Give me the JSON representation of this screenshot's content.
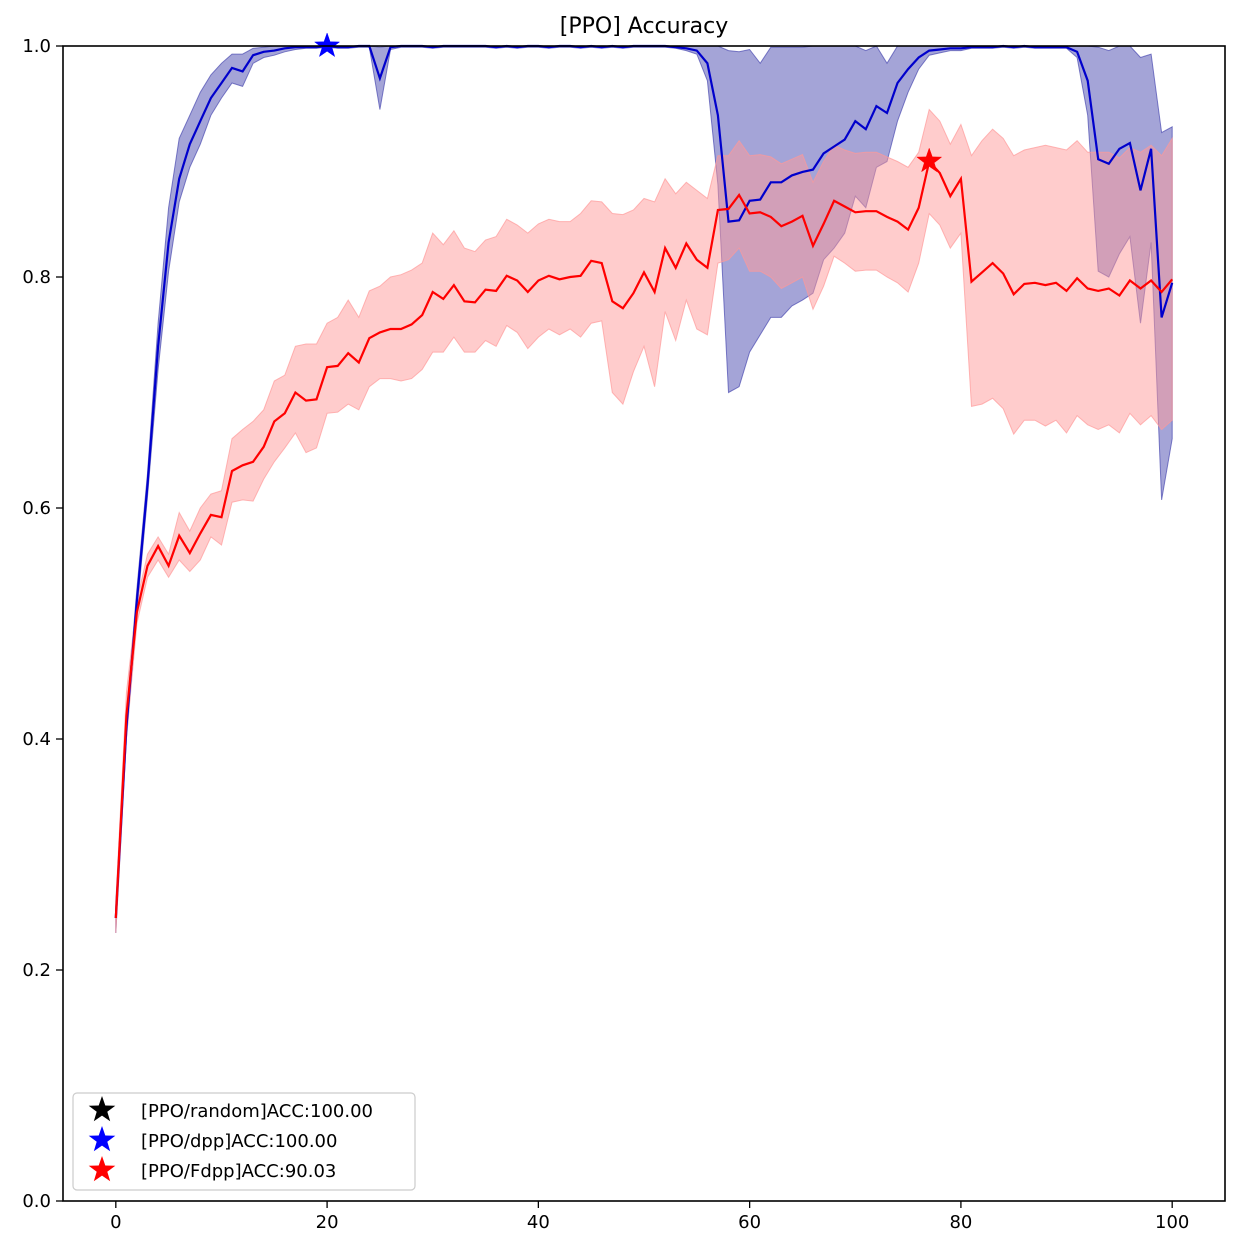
{
  "chart_data": {
    "type": "line",
    "title": "[PPO] Accuracy",
    "xlabel": "",
    "ylabel": "",
    "xlim": [
      -5,
      105
    ],
    "ylim": [
      0.0,
      1.0
    ],
    "x_ticks": [
      0,
      20,
      40,
      60,
      80,
      100
    ],
    "x_tick_labels": [
      "0",
      "20",
      "40",
      "60",
      "80",
      "100"
    ],
    "y_ticks": [
      0.0,
      0.2,
      0.4,
      0.6,
      0.8,
      1.0
    ],
    "y_tick_labels": [
      "0.0",
      "0.2",
      "0.4",
      "0.6",
      "0.8",
      "1.0"
    ],
    "grid": false,
    "legend_position": "lower-left",
    "legend": [
      {
        "label": "[PPO/random]ACC:100.00",
        "color": "#000000",
        "marker": "star"
      },
      {
        "label": "[PPO/dpp]ACC:100.00",
        "color": "#0000ff",
        "marker": "star"
      },
      {
        "label": "[PPO/Fdpp]ACC:90.03",
        "color": "#ff0000",
        "marker": "star"
      }
    ],
    "series": [
      {
        "color": "#0000cc",
        "band_color": "#4a4ab0",
        "x": [
          0,
          1,
          2,
          3,
          4,
          5,
          6,
          7,
          8,
          9,
          10,
          11,
          12,
          13,
          14,
          15,
          16,
          17,
          18,
          19,
          20,
          21,
          22,
          23,
          24,
          25,
          26,
          27,
          28,
          29,
          30,
          31,
          32,
          33,
          34,
          35,
          36,
          37,
          38,
          39,
          40,
          41,
          42,
          43,
          44,
          45,
          46,
          47,
          48,
          49,
          50,
          51,
          52,
          53,
          54,
          55,
          56,
          57,
          58,
          59,
          60,
          61,
          62,
          63,
          64,
          65,
          66,
          67,
          68,
          69,
          70,
          71,
          72,
          73,
          74,
          75,
          76,
          77,
          78,
          79,
          80,
          81,
          82,
          83,
          84,
          85,
          86,
          87,
          88,
          89,
          90,
          91,
          92,
          93,
          94,
          95,
          96,
          97,
          98,
          99,
          100
        ],
        "values": [
          0.245,
          0.41,
          0.52,
          0.62,
          0.74,
          0.83,
          0.885,
          0.915,
          0.935,
          0.955,
          0.968,
          0.981,
          0.978,
          0.992,
          0.995,
          0.996,
          0.998,
          0.999,
          0.999,
          0.999,
          1.0,
          0.999,
          0.999,
          1.0,
          1.0,
          0.972,
          0.999,
          1.0,
          1.0,
          1.0,
          0.999,
          1.0,
          1.0,
          1.0,
          1.0,
          1.0,
          0.999,
          1.0,
          0.999,
          1.0,
          1.0,
          0.999,
          1.0,
          1.0,
          0.999,
          1.0,
          0.999,
          1.0,
          0.999,
          1.0,
          1.0,
          1.0,
          1.0,
          0.999,
          0.998,
          0.996,
          0.985,
          0.94,
          0.848,
          0.849,
          0.866,
          0.867,
          0.882,
          0.882,
          0.888,
          0.891,
          0.893,
          0.907,
          0.913,
          0.919,
          0.935,
          0.928,
          0.948,
          0.942,
          0.968,
          0.98,
          0.99,
          0.996,
          0.997,
          0.998,
          0.998,
          0.999,
          0.999,
          0.999,
          1.0,
          0.999,
          1.0,
          0.999,
          0.999,
          0.999,
          0.999,
          0.995,
          0.97,
          0.902,
          0.898,
          0.911,
          0.916,
          0.875,
          0.911,
          0.765,
          0.795
        ],
        "lower": [
          0.232,
          0.4,
          0.51,
          0.61,
          0.72,
          0.805,
          0.865,
          0.895,
          0.915,
          0.94,
          0.955,
          0.968,
          0.965,
          0.985,
          0.99,
          0.992,
          0.995,
          0.997,
          0.998,
          0.998,
          0.999,
          0.998,
          0.998,
          0.999,
          0.999,
          0.945,
          0.997,
          0.999,
          0.999,
          0.999,
          0.998,
          0.999,
          0.999,
          0.999,
          0.999,
          0.999,
          0.998,
          0.999,
          0.998,
          0.999,
          0.999,
          0.998,
          0.999,
          0.999,
          0.998,
          0.999,
          0.998,
          0.999,
          0.998,
          0.999,
          0.999,
          0.999,
          0.999,
          0.998,
          0.996,
          0.993,
          0.97,
          0.88,
          0.7,
          0.705,
          0.735,
          0.75,
          0.765,
          0.765,
          0.775,
          0.78,
          0.786,
          0.815,
          0.825,
          0.838,
          0.87,
          0.86,
          0.895,
          0.9,
          0.935,
          0.96,
          0.98,
          0.992,
          0.994,
          0.996,
          0.996,
          0.998,
          0.998,
          0.998,
          0.999,
          0.998,
          0.999,
          0.998,
          0.998,
          0.998,
          0.998,
          0.99,
          0.94,
          0.805,
          0.8,
          0.82,
          0.835,
          0.76,
          0.83,
          0.607,
          0.66
        ],
        "upper": [
          0.258,
          0.42,
          0.53,
          0.63,
          0.76,
          0.86,
          0.92,
          0.94,
          0.96,
          0.975,
          0.985,
          0.993,
          0.993,
          0.998,
          0.999,
          1.0,
          1.0,
          1.0,
          1.0,
          1.0,
          1.0,
          1.0,
          1.0,
          1.0,
          1.0,
          0.999,
          1.0,
          1.0,
          1.0,
          1.0,
          1.0,
          1.0,
          1.0,
          1.0,
          1.0,
          1.0,
          1.0,
          1.0,
          1.0,
          1.0,
          1.0,
          1.0,
          1.0,
          1.0,
          1.0,
          1.0,
          1.0,
          1.0,
          1.0,
          1.0,
          1.0,
          1.0,
          1.0,
          1.0,
          1.0,
          1.0,
          1.0,
          1.0,
          0.996,
          0.995,
          0.997,
          0.985,
          0.999,
          0.999,
          0.999,
          0.999,
          1.0,
          1.0,
          1.0,
          1.0,
          1.0,
          0.996,
          1.0,
          0.985,
          1.0,
          1.0,
          1.0,
          1.0,
          1.0,
          1.0,
          1.0,
          1.0,
          1.0,
          1.0,
          1.0,
          1.0,
          1.0,
          1.0,
          1.0,
          1.0,
          1.0,
          1.0,
          1.0,
          0.999,
          0.996,
          1.0,
          1.0,
          0.99,
          0.993,
          0.925,
          0.93
        ]
      },
      {
        "color": "#ff0000",
        "band_color": "#ff9999",
        "x": [
          0,
          1,
          2,
          3,
          4,
          5,
          6,
          7,
          8,
          9,
          10,
          11,
          12,
          13,
          14,
          15,
          16,
          17,
          18,
          19,
          20,
          21,
          22,
          23,
          24,
          25,
          26,
          27,
          28,
          29,
          30,
          31,
          32,
          33,
          34,
          35,
          36,
          37,
          38,
          39,
          40,
          41,
          42,
          43,
          44,
          45,
          46,
          47,
          48,
          49,
          50,
          51,
          52,
          53,
          54,
          55,
          56,
          57,
          58,
          59,
          60,
          61,
          62,
          63,
          64,
          65,
          66,
          67,
          68,
          69,
          70,
          71,
          72,
          73,
          74,
          75,
          76,
          77,
          78,
          79,
          80,
          81,
          82,
          83,
          84,
          85,
          86,
          87,
          88,
          89,
          90,
          91,
          92,
          93,
          94,
          95,
          96,
          97,
          98,
          99,
          100
        ],
        "values": [
          0.245,
          0.42,
          0.51,
          0.55,
          0.567,
          0.55,
          0.576,
          0.561,
          0.578,
          0.594,
          0.592,
          0.632,
          0.637,
          0.64,
          0.653,
          0.675,
          0.682,
          0.7,
          0.693,
          0.694,
          0.722,
          0.723,
          0.734,
          0.726,
          0.747,
          0.752,
          0.755,
          0.755,
          0.759,
          0.767,
          0.787,
          0.781,
          0.793,
          0.779,
          0.778,
          0.789,
          0.788,
          0.801,
          0.797,
          0.787,
          0.797,
          0.801,
          0.798,
          0.8,
          0.801,
          0.814,
          0.812,
          0.779,
          0.773,
          0.786,
          0.804,
          0.787,
          0.825,
          0.808,
          0.829,
          0.815,
          0.808,
          0.858,
          0.859,
          0.871,
          0.855,
          0.856,
          0.852,
          0.844,
          0.848,
          0.853,
          0.827,
          0.846,
          0.866,
          0.861,
          0.856,
          0.857,
          0.857,
          0.852,
          0.848,
          0.841,
          0.86,
          0.9,
          0.89,
          0.87,
          0.885,
          0.796,
          0.804,
          0.812,
          0.803,
          0.785,
          0.794,
          0.795,
          0.793,
          0.795,
          0.788,
          0.799,
          0.79,
          0.788,
          0.79,
          0.784,
          0.797,
          0.79,
          0.797,
          0.787,
          0.798
        ],
        "lower": [
          0.232,
          0.4,
          0.5,
          0.54,
          0.555,
          0.54,
          0.555,
          0.545,
          0.555,
          0.575,
          0.568,
          0.605,
          0.607,
          0.606,
          0.625,
          0.64,
          0.652,
          0.665,
          0.648,
          0.652,
          0.682,
          0.683,
          0.69,
          0.685,
          0.705,
          0.712,
          0.712,
          0.71,
          0.712,
          0.72,
          0.735,
          0.735,
          0.748,
          0.735,
          0.735,
          0.745,
          0.74,
          0.758,
          0.752,
          0.738,
          0.748,
          0.755,
          0.75,
          0.755,
          0.748,
          0.76,
          0.762,
          0.7,
          0.69,
          0.718,
          0.74,
          0.705,
          0.77,
          0.745,
          0.78,
          0.755,
          0.75,
          0.812,
          0.815,
          0.825,
          0.805,
          0.805,
          0.8,
          0.79,
          0.795,
          0.8,
          0.772,
          0.792,
          0.818,
          0.812,
          0.805,
          0.806,
          0.806,
          0.8,
          0.795,
          0.787,
          0.812,
          0.855,
          0.845,
          0.825,
          0.838,
          0.688,
          0.69,
          0.695,
          0.686,
          0.664,
          0.676,
          0.676,
          0.671,
          0.676,
          0.665,
          0.68,
          0.672,
          0.668,
          0.672,
          0.665,
          0.682,
          0.672,
          0.68,
          0.668,
          0.676
        ],
        "upper": [
          0.258,
          0.44,
          0.52,
          0.56,
          0.575,
          0.56,
          0.596,
          0.58,
          0.6,
          0.612,
          0.615,
          0.66,
          0.668,
          0.675,
          0.685,
          0.71,
          0.715,
          0.74,
          0.742,
          0.742,
          0.76,
          0.765,
          0.78,
          0.765,
          0.788,
          0.792,
          0.8,
          0.802,
          0.806,
          0.812,
          0.838,
          0.828,
          0.84,
          0.825,
          0.822,
          0.832,
          0.835,
          0.85,
          0.845,
          0.838,
          0.846,
          0.85,
          0.848,
          0.848,
          0.855,
          0.866,
          0.865,
          0.855,
          0.854,
          0.858,
          0.868,
          0.865,
          0.885,
          0.872,
          0.882,
          0.875,
          0.868,
          0.905,
          0.905,
          0.918,
          0.905,
          0.906,
          0.904,
          0.898,
          0.902,
          0.906,
          0.882,
          0.9,
          0.914,
          0.91,
          0.907,
          0.908,
          0.908,
          0.904,
          0.9,
          0.895,
          0.908,
          0.945,
          0.935,
          0.915,
          0.932,
          0.905,
          0.918,
          0.928,
          0.92,
          0.905,
          0.91,
          0.912,
          0.914,
          0.912,
          0.91,
          0.918,
          0.908,
          0.908,
          0.908,
          0.903,
          0.912,
          0.908,
          0.914,
          0.905,
          0.92
        ]
      }
    ],
    "star_markers": [
      {
        "x": 20,
        "y": 1.0,
        "color": "#0000ff"
      },
      {
        "x": 77,
        "y": 0.9003,
        "color": "#ff0000"
      }
    ]
  }
}
